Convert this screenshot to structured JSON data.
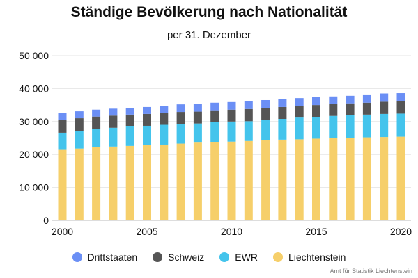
{
  "title": "Ständige Bevölkerung nach Nationalität",
  "subtitle": "per 31. Dezember",
  "source": "Amt für Statistik Liechtenstein",
  "colors": {
    "Liechtenstein": "#f6cf6a",
    "EWR": "#44c4ec",
    "Schweiz": "#555555",
    "Drittstaaten": "#6b8ff5",
    "grid": "#e6e6e6",
    "axis": "#bbbbbb"
  },
  "chart_data": {
    "type": "bar",
    "stacked": true,
    "x": [
      2000,
      2001,
      2002,
      2003,
      2004,
      2005,
      2006,
      2007,
      2008,
      2009,
      2010,
      2011,
      2012,
      2013,
      2014,
      2015,
      2016,
      2017,
      2018,
      2019,
      2020
    ],
    "x_tick_labels": [
      "2000",
      "2005",
      "2010",
      "2015",
      "2020"
    ],
    "y_tick_labels": [
      "0",
      "10 000",
      "20 000",
      "30 000",
      "40 000",
      "50 000"
    ],
    "ylim": [
      0,
      50000
    ],
    "grid": true,
    "legend_position": "bottom",
    "series": [
      {
        "name": "Liechtenstein",
        "values": [
          21400,
          21800,
          22200,
          22400,
          22600,
          22800,
          23000,
          23300,
          23600,
          23800,
          23900,
          24100,
          24300,
          24500,
          24600,
          24800,
          24900,
          25000,
          25200,
          25300,
          25400
        ]
      },
      {
        "name": "EWR",
        "values": [
          5200,
          5400,
          5500,
          5700,
          5900,
          5900,
          6000,
          6000,
          5800,
          6000,
          6100,
          6000,
          6100,
          6300,
          6600,
          6600,
          6800,
          6900,
          6900,
          7000,
          7000
        ]
      },
      {
        "name": "Schweiz",
        "values": [
          3800,
          3800,
          3800,
          3700,
          3600,
          3600,
          3600,
          3600,
          3600,
          3600,
          3600,
          3700,
          3600,
          3600,
          3600,
          3600,
          3600,
          3600,
          3600,
          3700,
          3700
        ]
      },
      {
        "name": "Drittstaaten",
        "values": [
          2100,
          2100,
          2100,
          2100,
          2000,
          2100,
          2200,
          2300,
          2300,
          2300,
          2300,
          2300,
          2500,
          2400,
          2300,
          2400,
          2300,
          2300,
          2500,
          2500,
          2500
        ]
      }
    ]
  },
  "legend": [
    {
      "label": "Drittstaaten",
      "color": "#6b8ff5"
    },
    {
      "label": "Schweiz",
      "color": "#555555"
    },
    {
      "label": "EWR",
      "color": "#44c4ec"
    },
    {
      "label": "Liechtenstein",
      "color": "#f6cf6a"
    }
  ]
}
